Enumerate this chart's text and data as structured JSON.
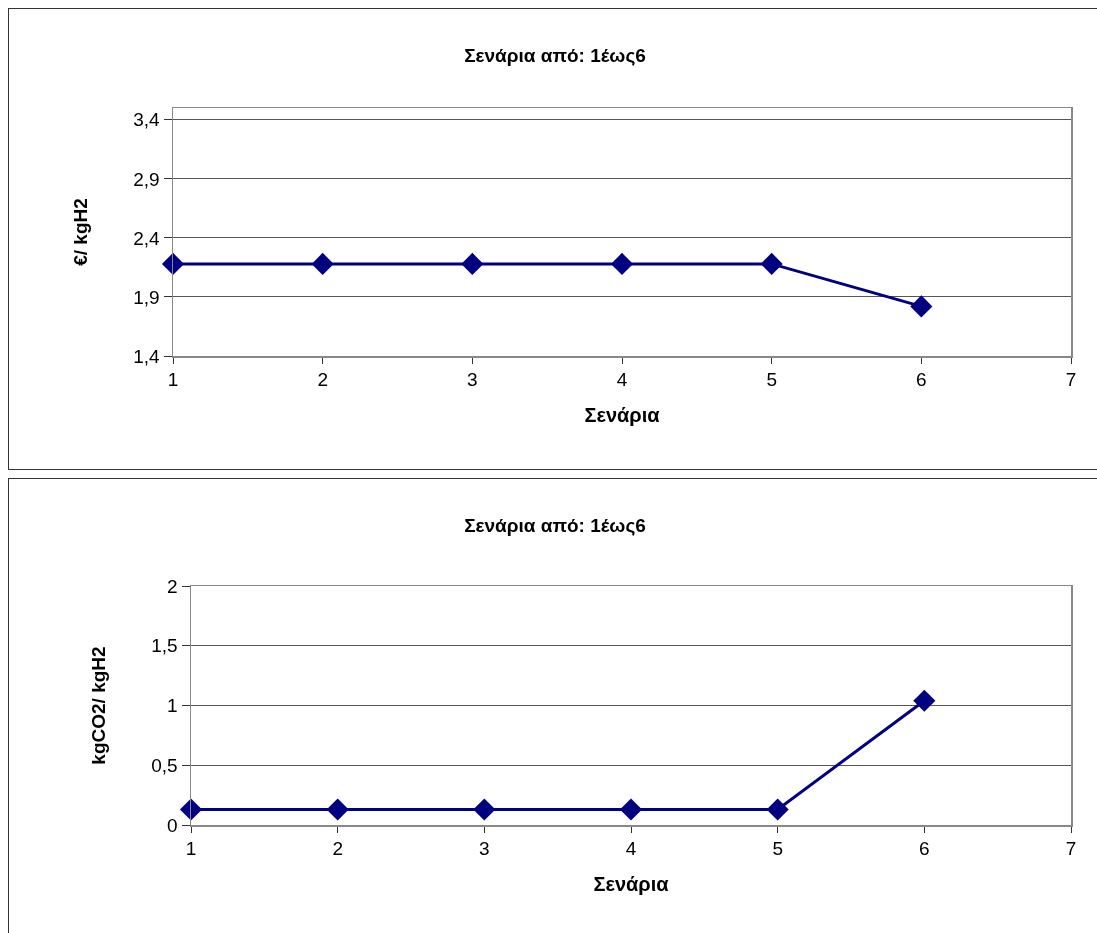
{
  "chart_data": [
    {
      "type": "line",
      "title": "Σενάρια από: 1έως6",
      "xlabel": "Σενάρια",
      "ylabel": "€/ kgH2",
      "x": [
        1,
        2,
        3,
        4,
        5,
        6
      ],
      "series": [
        {
          "color": "#000080",
          "values": [
            2.18,
            2.18,
            2.18,
            2.18,
            2.18,
            1.82
          ]
        }
      ],
      "xlim": [
        1,
        7
      ],
      "xticks": [
        1,
        2,
        3,
        4,
        5,
        6,
        7
      ],
      "ylim": [
        1.4,
        3.5
      ],
      "yticks": [
        {
          "value": 1.4,
          "label": "1,4"
        },
        {
          "value": 1.9,
          "label": "1,9"
        },
        {
          "value": 2.4,
          "label": "2,4"
        },
        {
          "value": 2.9,
          "label": "2,9"
        },
        {
          "value": 3.4,
          "label": "3,4"
        }
      ],
      "grid": "y",
      "legend": false,
      "marker": "diamond",
      "line_style": "solid"
    },
    {
      "type": "line",
      "title": "Σενάρια από: 1έως6",
      "xlabel": "Σενάρια",
      "ylabel": "kgCO2/ kgH2",
      "x": [
        1,
        2,
        3,
        4,
        5,
        6
      ],
      "series": [
        {
          "color": "#000080",
          "values": [
            0.13,
            0.13,
            0.13,
            0.13,
            0.13,
            1.04
          ]
        }
      ],
      "xlim": [
        1,
        7
      ],
      "xticks": [
        1,
        2,
        3,
        4,
        5,
        6,
        7
      ],
      "ylim": [
        0,
        2
      ],
      "yticks": [
        0,
        {
          "value": 0.5,
          "label": "0,5"
        },
        1,
        {
          "value": 1.5,
          "label": "1,5"
        },
        2
      ],
      "grid": "y",
      "legend": false,
      "marker": "diamond",
      "line_style": "solid"
    }
  ]
}
